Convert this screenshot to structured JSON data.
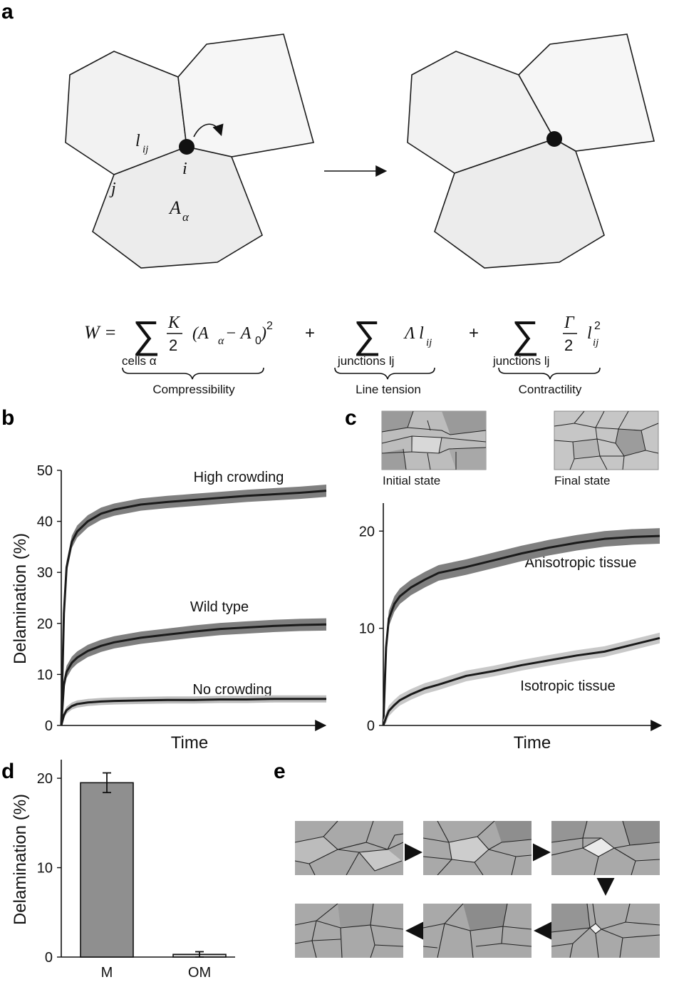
{
  "panels": {
    "a": {
      "label": "a",
      "vertex_labels": {
        "l": "l",
        "l_sub": "ij",
        "i": "i",
        "j": "j",
        "A": "A",
        "A_sub": "α"
      },
      "equation": {
        "W": "W =",
        "sum": "∑",
        "K": "K",
        "two": "2",
        "paren": "(A",
        "alpha": "α",
        "minus": " − A",
        "zero": "0",
        "close": ")",
        "sq": "2",
        "plus": "+",
        "Lambda": "Λ l",
        "ij": "ij",
        "Gamma": "Γ",
        "l": "l",
        "cells_alpha": "cells α",
        "junctions1": "junctions lj",
        "junctions2": "junctions lj"
      },
      "braces": [
        "Compressibility",
        "Line tension",
        "Contractility"
      ]
    },
    "b": {
      "label": "b"
    },
    "c": {
      "label": "c",
      "thumbs": [
        "Initial state",
        "Final state"
      ]
    },
    "d": {
      "label": "d"
    },
    "e": {
      "label": "e"
    }
  },
  "chart_data": [
    {
      "type": "line",
      "panel": "b",
      "xlabel": "Time",
      "ylabel": "Delamination (%)",
      "ylim": [
        0,
        50
      ],
      "yticks": [
        0,
        10,
        20,
        30,
        40,
        50
      ],
      "x": [
        0,
        0.01,
        0.02,
        0.04,
        0.06,
        0.1,
        0.15,
        0.2,
        0.3,
        0.4,
        0.5,
        0.6,
        0.7,
        0.8,
        0.9,
        1.0
      ],
      "series": [
        {
          "name": "High crowding",
          "values": [
            0,
            22,
            31,
            36,
            38,
            40,
            41.5,
            42.3,
            43.3,
            43.8,
            44.2,
            44.6,
            45,
            45.3,
            45.6,
            46
          ]
        },
        {
          "name": "Wild type",
          "values": [
            0,
            8,
            10.5,
            12.3,
            13.3,
            14.6,
            15.6,
            16.3,
            17.2,
            17.8,
            18.4,
            18.9,
            19.2,
            19.5,
            19.7,
            19.8
          ]
        },
        {
          "name": "No crowding",
          "values": [
            0,
            2,
            3,
            3.8,
            4.2,
            4.5,
            4.7,
            4.8,
            4.9,
            5,
            5,
            5.1,
            5.1,
            5.2,
            5.2,
            5.2
          ]
        }
      ]
    },
    {
      "type": "line",
      "panel": "c",
      "xlabel": "Time",
      "ylim": [
        0,
        22
      ],
      "yticks": [
        0,
        10,
        20
      ],
      "x": [
        0,
        0.01,
        0.02,
        0.04,
        0.06,
        0.1,
        0.15,
        0.2,
        0.3,
        0.4,
        0.5,
        0.6,
        0.7,
        0.8,
        0.9,
        1.0
      ],
      "series": [
        {
          "name": "Anisotropic tissue",
          "values": [
            0,
            8,
            11,
            12.5,
            13.3,
            14.2,
            15,
            15.7,
            16.3,
            17,
            17.7,
            18.3,
            18.8,
            19.2,
            19.4,
            19.5
          ]
        },
        {
          "name": "Isotropic tissue",
          "values": [
            0,
            0.8,
            1.5,
            2.1,
            2.6,
            3.2,
            3.8,
            4.2,
            5.1,
            5.6,
            6.2,
            6.7,
            7.2,
            7.6,
            8.3,
            9
          ]
        }
      ]
    },
    {
      "type": "bar",
      "panel": "d",
      "ylabel": "Delamination (%)",
      "categories": [
        "M",
        "OM"
      ],
      "values": [
        19.5,
        0.3
      ],
      "errors": [
        1.1,
        0.3
      ],
      "ylim": [
        0,
        22
      ],
      "yticks": [
        0,
        10,
        20
      ]
    }
  ]
}
